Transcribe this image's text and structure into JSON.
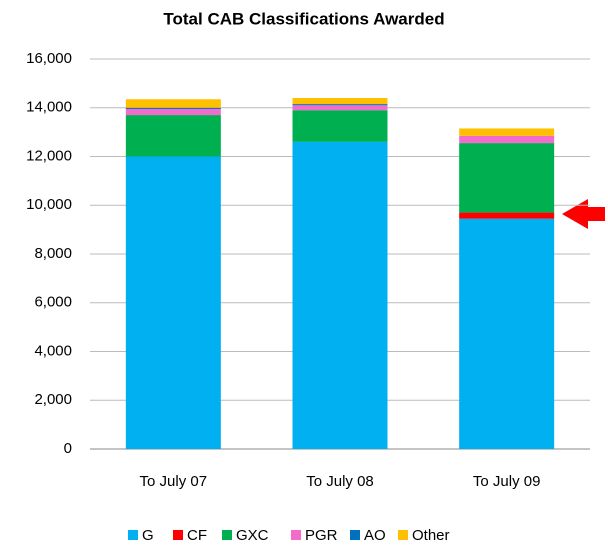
{
  "chart_data": {
    "type": "stacked_bar",
    "title": "Total CAB Classifications Awarded",
    "categories": [
      "To July 07",
      "To July 08",
      "To July 09"
    ],
    "series": [
      {
        "name": "G",
        "color": "#00b0f0",
        "values": [
          12000,
          12600,
          9450
        ]
      },
      {
        "name": "CF",
        "color": "#ff0000",
        "values": [
          0,
          0,
          250
        ]
      },
      {
        "name": "GXC",
        "color": "#00b050",
        "values": [
          1700,
          1300,
          2850
        ]
      },
      {
        "name": "PGR",
        "color": "#f36ccb",
        "values": [
          250,
          200,
          300
        ]
      },
      {
        "name": "AO",
        "color": "#0070c0",
        "values": [
          50,
          50,
          0
        ]
      },
      {
        "name": "Other",
        "color": "#ffc000",
        "values": [
          350,
          250,
          300
        ]
      }
    ],
    "ylim": [
      0,
      16000
    ],
    "yticks": [
      0,
      {
        "value": 2000,
        "label": "2,000"
      },
      {
        "value": 4000,
        "label": "4,000"
      },
      {
        "value": 6000,
        "label": "6,000"
      },
      {
        "value": 8000,
        "label": "8,000"
      },
      {
        "value": 10000,
        "label": "10,000"
      },
      {
        "value": 12000,
        "label": "12,000"
      },
      {
        "value": 14000,
        "label": "14,000"
      },
      {
        "value": 16000,
        "label": "16,000"
      }
    ],
    "grid": true,
    "legend": "bottom"
  }
}
